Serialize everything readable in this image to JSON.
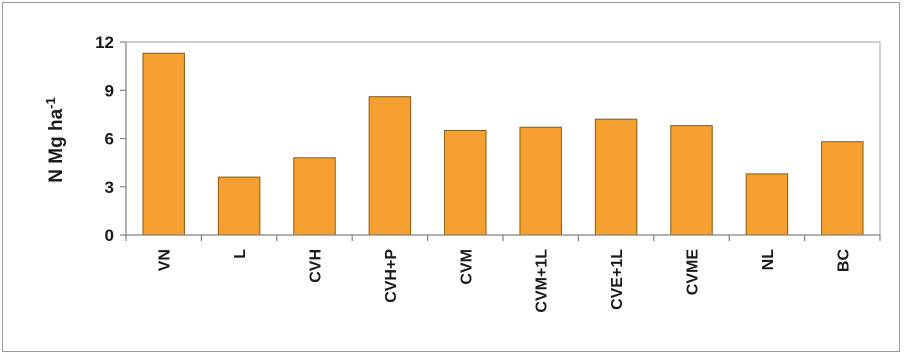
{
  "chart_data": {
    "type": "bar",
    "categories": [
      "VN",
      "L",
      "CVH",
      "CVH+P",
      "CVM",
      "CVM+1L",
      "CVE+1L",
      "CVME",
      "NL",
      "BC"
    ],
    "values": [
      11.3,
      3.6,
      4.8,
      8.6,
      6.5,
      6.7,
      7.2,
      6.8,
      3.8,
      5.8
    ],
    "ylabel": "N Mg ha",
    "ylabel_sup": "-1",
    "xlabel": "",
    "ylim": [
      0,
      12
    ],
    "yticks": [
      0,
      3,
      6,
      9,
      12
    ],
    "grid": false,
    "colors": {
      "bar_fill": "#f5a030",
      "bar_stroke": "#8a5a10",
      "axis": "#808080"
    }
  }
}
